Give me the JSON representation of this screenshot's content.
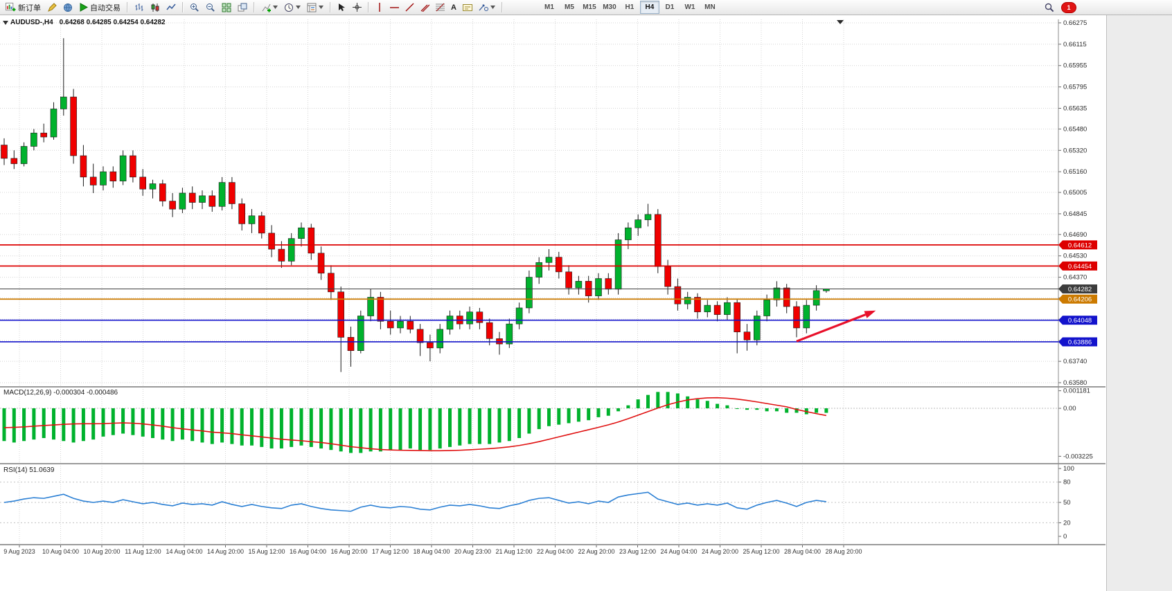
{
  "toolbar": {
    "new_order_label": "新订单",
    "autotrading_label": "自动交易",
    "text_tool_glyph": "A",
    "timeframes": [
      "M1",
      "M5",
      "M15",
      "M30",
      "H1",
      "H4",
      "D1",
      "W1",
      "MN"
    ],
    "active_timeframe": "H4",
    "notification_count": "1"
  },
  "chart": {
    "title": "AUDUSD-,H4",
    "ohlc": "0.64268 0.64285 0.64254 0.64282"
  },
  "indicators": {
    "macd_label": "MACD(12,26,9) -0.000304 -0.000486",
    "rsi_label": "RSI(14) 51.0639"
  },
  "axes": {
    "price_gridlines": [
      "0.66275",
      "0.66115",
      "0.65955",
      "0.65795",
      "0.65635",
      "0.65480",
      "0.65320",
      "0.65160",
      "0.65005",
      "0.64845",
      "0.64690",
      "0.64530",
      "0.64370",
      "0.64215",
      "0.64055",
      "0.63895",
      "0.63740",
      "0.63580"
    ],
    "macd_axis": [
      "0.001181",
      "0.00",
      "-0.003225"
    ],
    "rsi_axis": [
      "100",
      "80",
      "50",
      "20",
      "0"
    ],
    "time_labels": [
      "9 Aug 2023",
      "10 Aug 04:00",
      "10 Aug 20:00",
      "11 Aug 12:00",
      "14 Aug 04:00",
      "14 Aug 20:00",
      "15 Aug 12:00",
      "16 Aug 04:00",
      "16 Aug 20:00",
      "17 Aug 12:00",
      "18 Aug 04:00",
      "20 Aug 23:00",
      "21 Aug 12:00",
      "22 Aug 04:00",
      "22 Aug 20:00",
      "23 Aug 12:00",
      "24 Aug 04:00",
      "24 Aug 20:00",
      "25 Aug 12:00",
      "28 Aug 04:00",
      "28 Aug 20:00"
    ]
  },
  "lines": [
    {
      "role": "resistance-1",
      "value": 0.64612,
      "label": "0.64612",
      "color": "#dd0000"
    },
    {
      "role": "resistance-2",
      "value": 0.64454,
      "label": "0.64454",
      "color": "#dd0000"
    },
    {
      "role": "current-price",
      "value": 0.64282,
      "label": "0.64282",
      "color": "#3c3c3c"
    },
    {
      "role": "pivot",
      "value": 0.64206,
      "label": "0.64206",
      "color": "#cc7a00"
    },
    {
      "role": "support-1",
      "value": 0.64048,
      "label": "0.64048",
      "color": "#1313cc"
    },
    {
      "role": "support-2",
      "value": 0.63886,
      "label": "0.63886",
      "color": "#1313cc"
    }
  ],
  "chart_data": {
    "type": "candlestick",
    "symbol": "AUDUSD",
    "period": "H4",
    "current_ohlc": {
      "open": 0.64268,
      "high": 0.64285,
      "low": 0.64254,
      "close": 0.64282
    },
    "price_axis_range": [
      0.63565,
      0.66301
    ],
    "colors": {
      "up": "#00b22d",
      "down": "#f00000",
      "macd_histogram": "#00b22d",
      "macd_signal": "#e01010",
      "rsi_line": "#2a7fd4",
      "grid": "#d4d4d4",
      "arrow": "#e8102a"
    },
    "candles": [
      [
        0.6536,
        0.6541,
        0.6521,
        0.6526
      ],
      [
        0.6526,
        0.6532,
        0.6518,
        0.6522
      ],
      [
        0.6522,
        0.6538,
        0.652,
        0.6535
      ],
      [
        0.6535,
        0.6548,
        0.6532,
        0.6545
      ],
      [
        0.6545,
        0.6552,
        0.6538,
        0.6542
      ],
      [
        0.6542,
        0.6568,
        0.654,
        0.6563
      ],
      [
        0.6563,
        0.6616,
        0.6558,
        0.6572
      ],
      [
        0.6572,
        0.6578,
        0.6522,
        0.6528
      ],
      [
        0.6528,
        0.6536,
        0.6505,
        0.6512
      ],
      [
        0.6512,
        0.6522,
        0.65,
        0.6506
      ],
      [
        0.6506,
        0.652,
        0.6502,
        0.6516
      ],
      [
        0.6516,
        0.652,
        0.6504,
        0.6509
      ],
      [
        0.6509,
        0.6532,
        0.6506,
        0.6528
      ],
      [
        0.6528,
        0.6532,
        0.6508,
        0.6512
      ],
      [
        0.6512,
        0.6518,
        0.6498,
        0.6503
      ],
      [
        0.6503,
        0.651,
        0.6496,
        0.6507
      ],
      [
        0.6507,
        0.651,
        0.649,
        0.6494
      ],
      [
        0.6494,
        0.65,
        0.6482,
        0.6488
      ],
      [
        0.6488,
        0.6504,
        0.6485,
        0.65
      ],
      [
        0.65,
        0.6505,
        0.6488,
        0.6493
      ],
      [
        0.6493,
        0.6502,
        0.6488,
        0.6498
      ],
      [
        0.6498,
        0.6502,
        0.6486,
        0.649
      ],
      [
        0.649,
        0.6512,
        0.6487,
        0.6508
      ],
      [
        0.6508,
        0.6512,
        0.6488,
        0.6492
      ],
      [
        0.6492,
        0.6496,
        0.6472,
        0.6477
      ],
      [
        0.6477,
        0.6488,
        0.647,
        0.6483
      ],
      [
        0.6483,
        0.6486,
        0.6466,
        0.647
      ],
      [
        0.647,
        0.6476,
        0.6452,
        0.6458
      ],
      [
        0.6458,
        0.6464,
        0.6444,
        0.6449
      ],
      [
        0.6449,
        0.647,
        0.6446,
        0.6466
      ],
      [
        0.6466,
        0.6478,
        0.646,
        0.6474
      ],
      [
        0.6474,
        0.6477,
        0.645,
        0.6455
      ],
      [
        0.6455,
        0.646,
        0.6435,
        0.644
      ],
      [
        0.644,
        0.6446,
        0.642,
        0.6426
      ],
      [
        0.6426,
        0.643,
        0.6366,
        0.6392
      ],
      [
        0.6392,
        0.64,
        0.637,
        0.6382
      ],
      [
        0.6382,
        0.6412,
        0.638,
        0.6408
      ],
      [
        0.6408,
        0.6428,
        0.6404,
        0.6422
      ],
      [
        0.6422,
        0.6426,
        0.6398,
        0.6404
      ],
      [
        0.6404,
        0.6412,
        0.6394,
        0.6399
      ],
      [
        0.6399,
        0.6408,
        0.6395,
        0.6404
      ],
      [
        0.6404,
        0.6408,
        0.6395,
        0.6398
      ],
      [
        0.6398,
        0.6402,
        0.6378,
        0.6388
      ],
      [
        0.6388,
        0.6394,
        0.6374,
        0.6384
      ],
      [
        0.6384,
        0.6402,
        0.638,
        0.6398
      ],
      [
        0.6398,
        0.6412,
        0.6394,
        0.6408
      ],
      [
        0.6408,
        0.6412,
        0.6398,
        0.6402
      ],
      [
        0.6402,
        0.6415,
        0.6398,
        0.6411
      ],
      [
        0.6411,
        0.6414,
        0.6398,
        0.6403
      ],
      [
        0.6403,
        0.6406,
        0.6386,
        0.6391
      ],
      [
        0.6391,
        0.6396,
        0.6379,
        0.6387
      ],
      [
        0.6387,
        0.6406,
        0.6384,
        0.6402
      ],
      [
        0.6402,
        0.6418,
        0.6398,
        0.6414
      ],
      [
        0.6414,
        0.6442,
        0.641,
        0.6437
      ],
      [
        0.6437,
        0.6452,
        0.6432,
        0.6448
      ],
      [
        0.6448,
        0.6458,
        0.6442,
        0.6452
      ],
      [
        0.6452,
        0.6456,
        0.6436,
        0.6441
      ],
      [
        0.6441,
        0.6446,
        0.6424,
        0.6429
      ],
      [
        0.6429,
        0.6438,
        0.6424,
        0.6434
      ],
      [
        0.6434,
        0.6438,
        0.6418,
        0.6423
      ],
      [
        0.6423,
        0.644,
        0.642,
        0.6436
      ],
      [
        0.6436,
        0.644,
        0.6424,
        0.6428
      ],
      [
        0.6428,
        0.647,
        0.6424,
        0.6465
      ],
      [
        0.6465,
        0.6478,
        0.6458,
        0.6474
      ],
      [
        0.6474,
        0.6484,
        0.6468,
        0.648
      ],
      [
        0.648,
        0.6492,
        0.6475,
        0.6484
      ],
      [
        0.6484,
        0.6488,
        0.644,
        0.6445
      ],
      [
        0.6445,
        0.645,
        0.6424,
        0.643
      ],
      [
        0.643,
        0.6436,
        0.6412,
        0.6417
      ],
      [
        0.6417,
        0.6426,
        0.6413,
        0.6422
      ],
      [
        0.6422,
        0.6425,
        0.6406,
        0.6411
      ],
      [
        0.6411,
        0.642,
        0.6407,
        0.6416
      ],
      [
        0.6416,
        0.6419,
        0.6404,
        0.6409
      ],
      [
        0.6409,
        0.6422,
        0.6405,
        0.6418
      ],
      [
        0.6418,
        0.6421,
        0.638,
        0.6396
      ],
      [
        0.6396,
        0.6402,
        0.6382,
        0.639
      ],
      [
        0.639,
        0.6412,
        0.6386,
        0.6408
      ],
      [
        0.6408,
        0.6424,
        0.6404,
        0.642
      ],
      [
        0.642,
        0.6434,
        0.6415,
        0.6429
      ],
      [
        0.6429,
        0.6432,
        0.641,
        0.6415
      ],
      [
        0.6415,
        0.6419,
        0.6392,
        0.6399
      ],
      [
        0.6399,
        0.642,
        0.6395,
        0.6416
      ],
      [
        0.6416,
        0.6431,
        0.6412,
        0.6427
      ],
      [
        0.64268,
        0.64285,
        0.64254,
        0.64282
      ]
    ],
    "macd": {
      "histogram": [
        -0.0022,
        -0.0023,
        -0.0022,
        -0.0021,
        -0.002,
        -0.0021,
        -0.0022,
        -0.0023,
        -0.0022,
        -0.0021,
        -0.0019,
        -0.0018,
        -0.0017,
        -0.0018,
        -0.0019,
        -0.002,
        -0.0021,
        -0.0022,
        -0.0021,
        -0.0022,
        -0.0023,
        -0.0024,
        -0.0023,
        -0.0024,
        -0.0025,
        -0.0025,
        -0.0026,
        -0.0027,
        -0.0027,
        -0.0026,
        -0.0025,
        -0.0026,
        -0.0027,
        -0.0028,
        -0.0029,
        -0.003,
        -0.003,
        -0.0029,
        -0.0029,
        -0.0028,
        -0.0028,
        -0.0027,
        -0.0028,
        -0.0028,
        -0.0027,
        -0.0026,
        -0.0025,
        -0.0024,
        -0.0024,
        -0.0024,
        -0.0023,
        -0.0022,
        -0.002,
        -0.0017,
        -0.0014,
        -0.0012,
        -0.0011,
        -0.001,
        -0.0009,
        -0.0008,
        -0.0006,
        -0.0005,
        -0.0002,
        0.0002,
        0.0006,
        0.0009,
        0.0011,
        0.0011,
        0.001,
        0.0008,
        0.0006,
        0.0005,
        0.0003,
        0.0002,
        0.0,
        -0.0001,
        -0.0001,
        -0.0002,
        -0.0002,
        -0.0003,
        -0.0003,
        -0.0004,
        -0.0003,
        -0.000304
      ],
      "signal": [
        -0.0013,
        -0.00128,
        -0.00125,
        -0.0012,
        -0.00116,
        -0.00112,
        -0.00108,
        -0.00105,
        -0.00104,
        -0.00104,
        -0.00103,
        -0.001,
        -0.00098,
        -0.001,
        -0.00105,
        -0.00112,
        -0.0012,
        -0.0013,
        -0.00138,
        -0.00145,
        -0.00152,
        -0.0016,
        -0.00165,
        -0.0017,
        -0.00178,
        -0.00185,
        -0.00192,
        -0.002,
        -0.00208,
        -0.00213,
        -0.00218,
        -0.00224,
        -0.0023,
        -0.00238,
        -0.00248,
        -0.00258,
        -0.00265,
        -0.00272,
        -0.00277,
        -0.0028,
        -0.00282,
        -0.00283,
        -0.00284,
        -0.00285,
        -0.00285,
        -0.00284,
        -0.00282,
        -0.00279,
        -0.00275,
        -0.00271,
        -0.00266,
        -0.00259,
        -0.0025,
        -0.00238,
        -0.00224,
        -0.00208,
        -0.00192,
        -0.00176,
        -0.0016,
        -0.00144,
        -0.00128,
        -0.00111,
        -0.00092,
        -0.0007,
        -0.00046,
        -0.00022,
        2e-05,
        0.00024,
        0.00042,
        0.00056,
        0.00065,
        0.0007,
        0.00071,
        0.00068,
        0.00062,
        0.00053,
        0.00043,
        0.00032,
        0.00021,
        0.0001,
        -8e-05,
        -0.00022,
        -0.00036,
        -0.000486
      ]
    },
    "rsi": [
      50,
      52,
      55,
      57,
      56,
      59,
      62,
      56,
      52,
      50,
      52,
      50,
      54,
      51,
      48,
      50,
      47,
      45,
      49,
      47,
      48,
      46,
      51,
      47,
      44,
      47,
      44,
      42,
      41,
      46,
      48,
      44,
      41,
      39,
      38,
      37,
      43,
      46,
      43,
      42,
      44,
      43,
      40,
      39,
      43,
      46,
      45,
      47,
      45,
      42,
      41,
      45,
      48,
      53,
      56,
      57,
      53,
      49,
      51,
      48,
      52,
      50,
      58,
      61,
      63,
      65,
      55,
      51,
      47,
      49,
      46,
      48,
      46,
      49,
      42,
      40,
      46,
      50,
      53,
      49,
      44,
      50,
      53,
      51.06
    ],
    "annotations": {
      "arrow": {
        "from": {
          "bar": 80,
          "price": 0.6389
        },
        "to": {
          "bar": 88,
          "price": 0.6412
        },
        "color": "#e8102a"
      }
    }
  }
}
